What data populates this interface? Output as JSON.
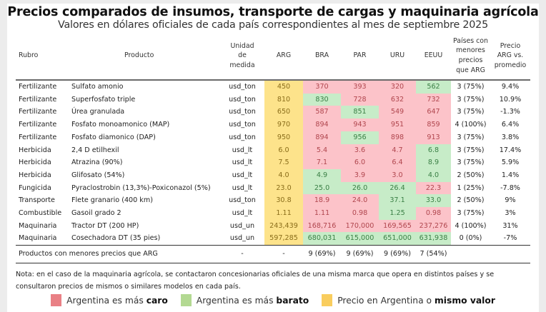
{
  "title": "Precios comparados de insumos, transporte de cargas y maquinaria agrícola",
  "subtitle": "Valores en dólares oficiales de cada país correspondientes al mes de septiembre 2025",
  "colors": {
    "caro": "#fcc3c9",
    "barato": "#c7ecc8",
    "arg": "#fde38b"
  },
  "headers": {
    "rubro": "Rubro",
    "producto": "Producto",
    "unidad": [
      "Unidad",
      "de",
      "medida"
    ],
    "arg": "ARG",
    "bra": "BRA",
    "par": "PAR",
    "uru": "URU",
    "eeuu": "EEUU",
    "paises": [
      "Países con",
      "menores",
      "precios",
      "que ARG"
    ],
    "precio": [
      "Precio",
      "ARG vs.",
      "promedio"
    ]
  },
  "rows": [
    {
      "rubro": "Fertilizante",
      "producto": "Sulfato amonio",
      "unidad": "usd_ton",
      "arg": "450",
      "bra": {
        "v": "370",
        "s": "red"
      },
      "par": {
        "v": "393",
        "s": "red"
      },
      "uru": {
        "v": "320",
        "s": "red"
      },
      "eeuu": {
        "v": "562",
        "s": "green"
      },
      "paises": "3 (75%)",
      "precio": "9.4%"
    },
    {
      "rubro": "Fertilizante",
      "producto": "Superfosfato triple",
      "unidad": "usd_ton",
      "arg": "810",
      "bra": {
        "v": "830",
        "s": "green"
      },
      "par": {
        "v": "728",
        "s": "red"
      },
      "uru": {
        "v": "632",
        "s": "red"
      },
      "eeuu": {
        "v": "732",
        "s": "red"
      },
      "paises": "3 (75%)",
      "precio": "10.9%"
    },
    {
      "rubro": "Fertilizante",
      "producto": "Úrea granulada",
      "unidad": "usd_ton",
      "arg": "650",
      "bra": {
        "v": "587",
        "s": "red"
      },
      "par": {
        "v": "851",
        "s": "green"
      },
      "uru": {
        "v": "549",
        "s": "red"
      },
      "eeuu": {
        "v": "647",
        "s": "red"
      },
      "paises": "3 (75%)",
      "precio": "-1.3%"
    },
    {
      "rubro": "Fertilizante",
      "producto": "Fosfato monoamonico (MAP)",
      "unidad": "usd_ton",
      "arg": "970",
      "bra": {
        "v": "894",
        "s": "red"
      },
      "par": {
        "v": "943",
        "s": "red"
      },
      "uru": {
        "v": "951",
        "s": "red"
      },
      "eeuu": {
        "v": "859",
        "s": "red"
      },
      "paises": "4 (100%)",
      "precio": "6.4%"
    },
    {
      "rubro": "Fertilizante",
      "producto": "Fosfato diamonico (DAP)",
      "unidad": "usd_ton",
      "arg": "950",
      "bra": {
        "v": "894",
        "s": "red"
      },
      "par": {
        "v": "956",
        "s": "green"
      },
      "uru": {
        "v": "898",
        "s": "red"
      },
      "eeuu": {
        "v": "913",
        "s": "red"
      },
      "paises": "3 (75%)",
      "precio": "3.8%"
    },
    {
      "rubro": "Herbicida",
      "producto": "2,4 D etilhexil",
      "unidad": "usd_lt",
      "arg": "6.0",
      "bra": {
        "v": "5.4",
        "s": "red"
      },
      "par": {
        "v": "3.6",
        "s": "red"
      },
      "uru": {
        "v": "4.7",
        "s": "red"
      },
      "eeuu": {
        "v": "6.8",
        "s": "green"
      },
      "paises": "3 (75%)",
      "precio": "17.4%"
    },
    {
      "rubro": "Herbicida",
      "producto": "Atrazina (90%)",
      "unidad": "usd_lt",
      "arg": "7.5",
      "bra": {
        "v": "7.1",
        "s": "red"
      },
      "par": {
        "v": "6.0",
        "s": "red"
      },
      "uru": {
        "v": "6.4",
        "s": "red"
      },
      "eeuu": {
        "v": "8.9",
        "s": "green"
      },
      "paises": "3 (75%)",
      "precio": "5.9%"
    },
    {
      "rubro": "Herbicida",
      "producto": "Glifosato (54%)",
      "unidad": "usd_lt",
      "arg": "4.0",
      "bra": {
        "v": "4.9",
        "s": "green"
      },
      "par": {
        "v": "3.9",
        "s": "red"
      },
      "uru": {
        "v": "3.0",
        "s": "red"
      },
      "eeuu": {
        "v": "4.0",
        "s": "green"
      },
      "paises": "2 (50%)",
      "precio": "1.4%"
    },
    {
      "rubro": "Fungicida",
      "producto": "Pyraclostrobin (13,3%)-Poxiconazol (5%)",
      "unidad": "usd_lt",
      "arg": "23.0",
      "bra": {
        "v": "25.0",
        "s": "green"
      },
      "par": {
        "v": "26.0",
        "s": "green"
      },
      "uru": {
        "v": "26.4",
        "s": "green"
      },
      "eeuu": {
        "v": "22.3",
        "s": "red"
      },
      "paises": "1 (25%)",
      "precio": "-7.8%"
    },
    {
      "rubro": "Transporte",
      "producto": "Flete granario (400 km)",
      "unidad": "usd_ton",
      "arg": "30.8",
      "bra": {
        "v": "18.9",
        "s": "red"
      },
      "par": {
        "v": "24.0",
        "s": "red"
      },
      "uru": {
        "v": "37.1",
        "s": "green"
      },
      "eeuu": {
        "v": "33.0",
        "s": "green"
      },
      "paises": "2 (50%)",
      "precio": "9%"
    },
    {
      "rubro": "Combustible",
      "producto": "Gasoil grado 2",
      "unidad": "usd_lt",
      "arg": "1.11",
      "bra": {
        "v": "1.11",
        "s": "red"
      },
      "par": {
        "v": "0.98",
        "s": "red"
      },
      "uru": {
        "v": "1.25",
        "s": "green"
      },
      "eeuu": {
        "v": "0.98",
        "s": "red"
      },
      "paises": "3 (75%)",
      "precio": "3%"
    },
    {
      "rubro": "Maquinaria",
      "producto": "Tractor DT (200 HP)",
      "unidad": "usd_un",
      "arg": "243,439",
      "bra": {
        "v": "168,716",
        "s": "red"
      },
      "par": {
        "v": "170,000",
        "s": "red"
      },
      "uru": {
        "v": "169,565",
        "s": "red"
      },
      "eeuu": {
        "v": "237,276",
        "s": "red"
      },
      "paises": "4 (100%)",
      "precio": "31%"
    },
    {
      "rubro": "Maquinaria",
      "producto": "Cosechadora DT (35 pies)",
      "unidad": "usd_un",
      "arg": "597,285",
      "bra": {
        "v": "680,031",
        "s": "green"
      },
      "par": {
        "v": "615,000",
        "s": "green"
      },
      "uru": {
        "v": "651,000",
        "s": "green"
      },
      "eeuu": {
        "v": "631,938",
        "s": "green"
      },
      "paises": "0 (0%)",
      "precio": "-7%"
    }
  ],
  "summary": {
    "label": "Productos con menores precios que ARG",
    "unidad": "-",
    "arg": "-",
    "bra": "9 (69%)",
    "par": "9 (69%)",
    "uru": "9 (69%)",
    "eeuu": "7 (54%)"
  },
  "note": "Nota: en el caso de la maquinaria agrícola, se contactaron concesionarias oficiales de una misma marca que opera en distintos países y se consultaron precios de mismos o similares modelos en cada país.",
  "legend": [
    {
      "prefix": "Argentina es más ",
      "bold": "caro",
      "swatch": "#e98085"
    },
    {
      "prefix": "Argentina es más ",
      "bold": "barato",
      "swatch": "#b3d992"
    },
    {
      "prefix": "Precio en Argentina o ",
      "bold": "mismo valor",
      "swatch": "#f9cd5e"
    }
  ]
}
